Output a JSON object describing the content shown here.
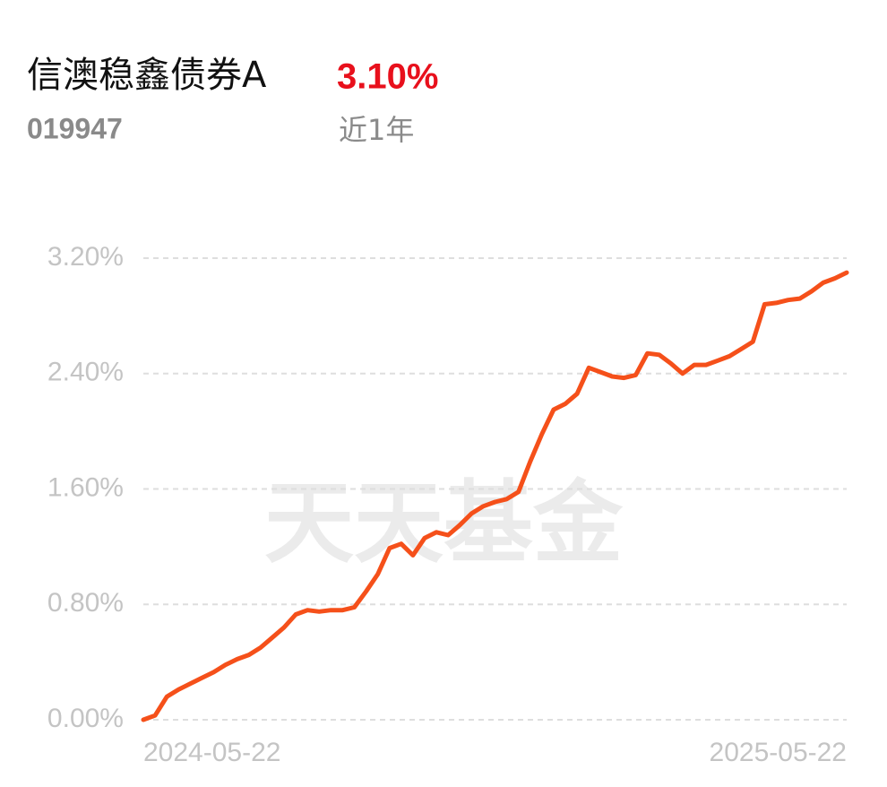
{
  "chart_data": {
    "type": "line",
    "title": "信澳稳鑫债券A",
    "code": "019947",
    "return": "3.10%",
    "period": "近1年",
    "watermark": "天天基金",
    "categories": [
      "2024-05-22",
      null,
      null,
      null,
      null,
      null,
      null,
      null,
      null,
      null,
      null,
      null,
      null,
      null,
      null,
      null,
      null,
      null,
      null,
      null,
      null,
      null,
      null,
      null,
      null,
      null,
      null,
      null,
      null,
      null,
      null,
      null,
      null,
      null,
      null,
      null,
      null,
      null,
      null,
      null,
      null,
      null,
      null,
      null,
      null,
      null,
      null,
      null,
      null,
      null,
      null,
      null,
      null,
      null,
      null,
      null,
      null,
      null,
      null,
      null,
      "2025-05-22"
    ],
    "series": [
      {
        "name": "信澳稳鑫债券A",
        "color": "#f5501a",
        "values": [
          0,
          0.03,
          0.16,
          0.21,
          0.25,
          0.29,
          0.33,
          0.38,
          0.42,
          0.45,
          0.5,
          0.57,
          0.64,
          0.73,
          0.76,
          0.75,
          0.76,
          0.76,
          0.78,
          0.89,
          1.01,
          1.19,
          1.22,
          1.14,
          1.26,
          1.3,
          1.28,
          1.35,
          1.43,
          1.48,
          1.51,
          1.53,
          1.58,
          1.79,
          1.98,
          2.15,
          2.19,
          2.26,
          2.44,
          2.41,
          2.38,
          2.37,
          2.39,
          2.54,
          2.53,
          2.47,
          2.4,
          2.46,
          2.46,
          2.49,
          2.52,
          2.57,
          2.62,
          2.88,
          2.89,
          2.91,
          2.92,
          2.97,
          3.03,
          3.06,
          3.1
        ]
      }
    ],
    "ylim": [
      0,
      3.2
    ],
    "yticks": [
      {
        "value": 0,
        "label": "0.00%"
      },
      {
        "value": 0.8,
        "label": "0.80%"
      },
      {
        "value": 1.6,
        "label": "1.60%"
      },
      {
        "value": 2.4,
        "label": "2.40%"
      },
      {
        "value": 3.2,
        "label": "3.20%"
      }
    ],
    "grid": true
  }
}
